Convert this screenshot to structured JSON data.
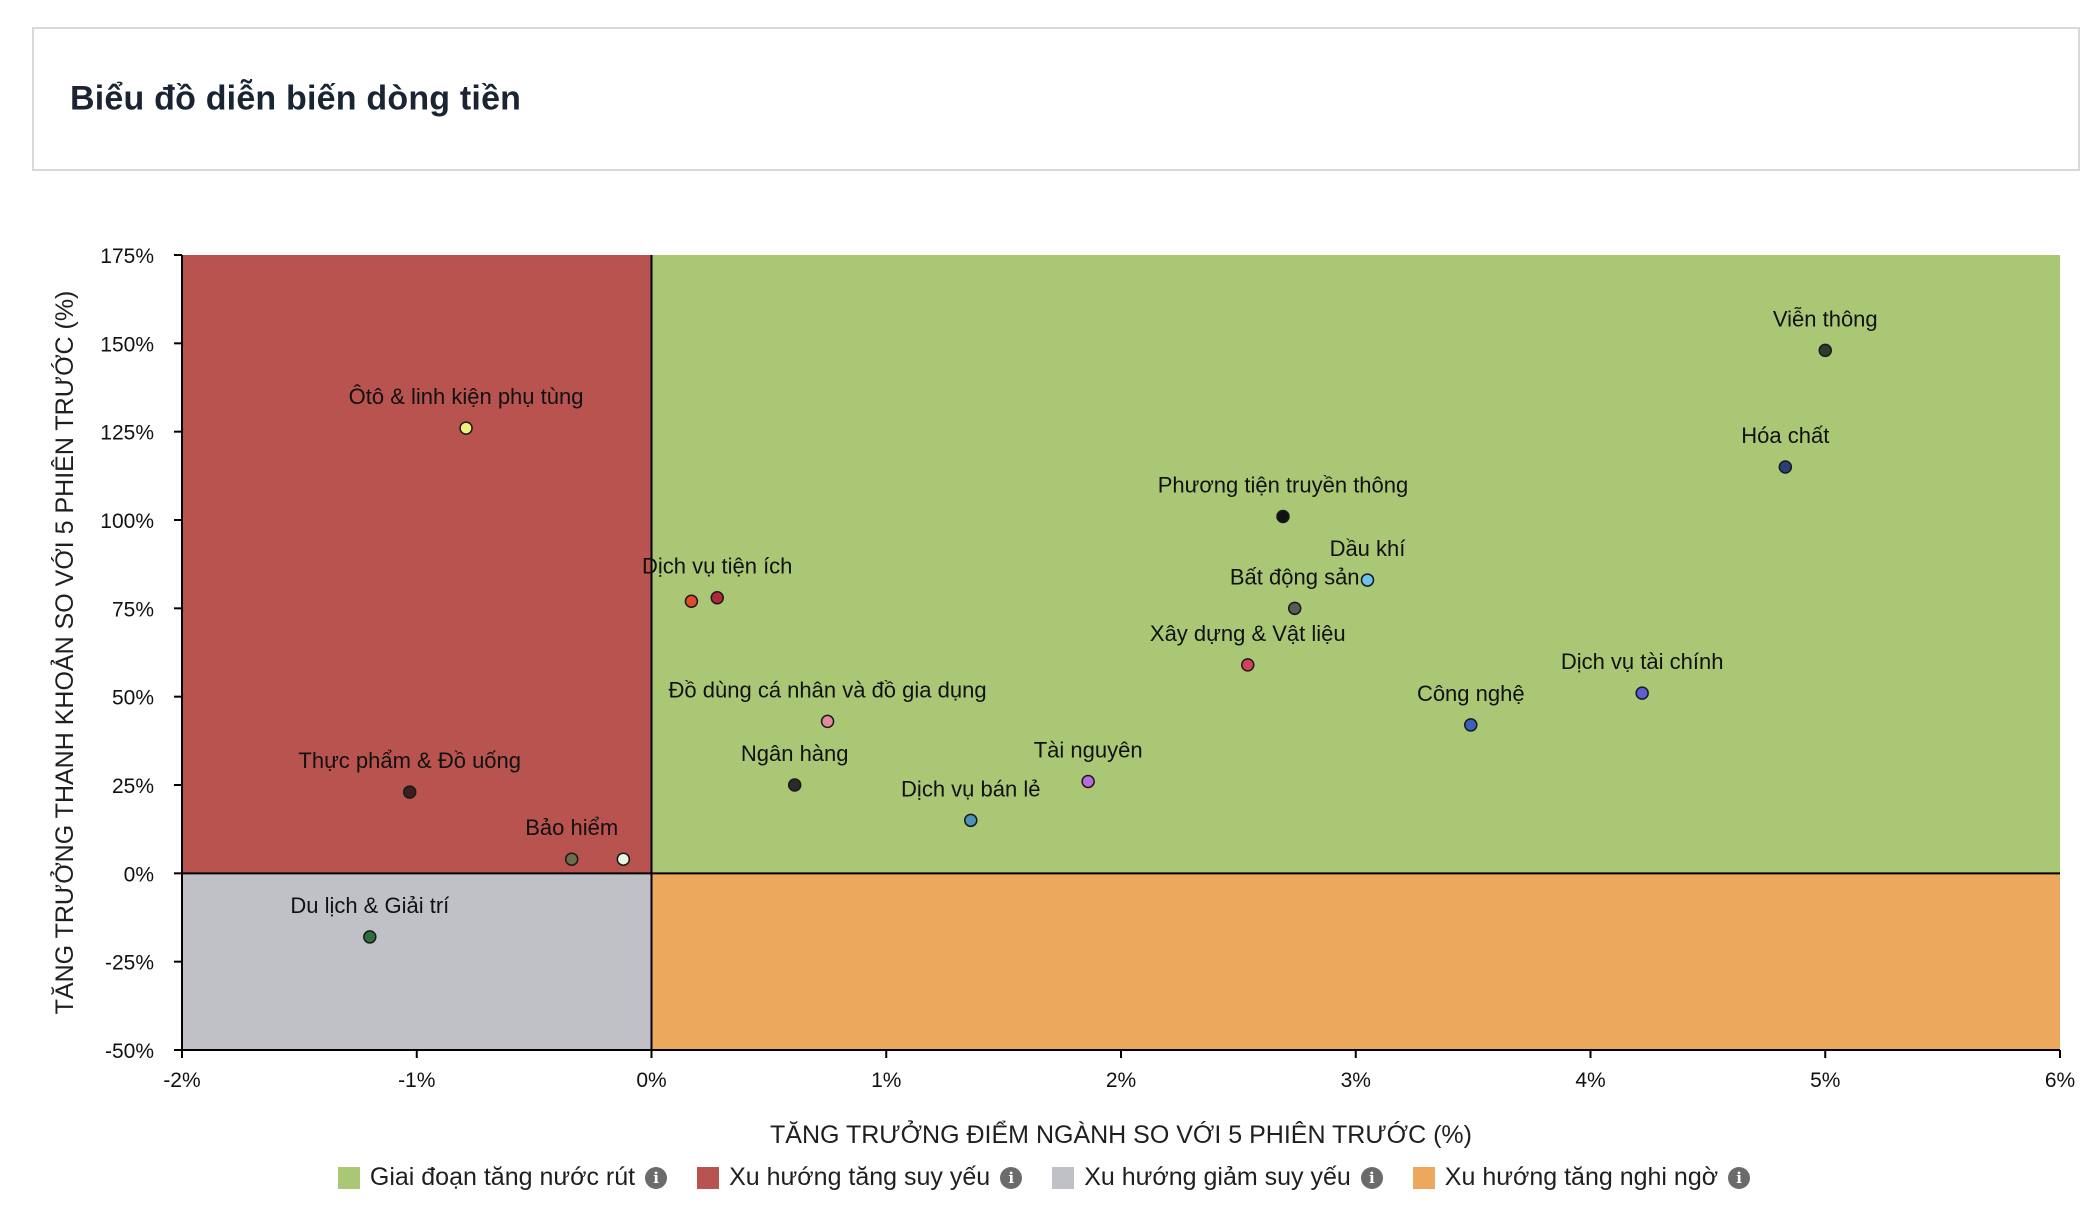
{
  "header": {
    "title": "Biểu đồ diễn biến dòng tiền"
  },
  "chart_data": {
    "type": "scatter",
    "title": "",
    "xlabel": "TĂNG TRƯỞNG ĐIỂM NGÀNH SO VỚI 5 PHIÊN TRƯỚC (%)",
    "ylabel": "TĂNG TRƯỞNG THANH KHOẢN SO VỚI 5 PHIÊN TRƯỚC (%)",
    "xlim": [
      -2,
      6
    ],
    "ylim": [
      -50,
      175
    ],
    "x_ticks": [
      -2,
      -1,
      0,
      1,
      2,
      3,
      4,
      5,
      6
    ],
    "y_ticks": [
      -50,
      -25,
      0,
      25,
      50,
      75,
      100,
      125,
      150,
      175
    ],
    "tick_suffix": "%",
    "quadrants": [
      {
        "name": "Giai đoạn tăng nước rút",
        "color": "#a9c774",
        "x_range": [
          0,
          6
        ],
        "y_range": [
          0,
          175
        ]
      },
      {
        "name": "Xu hướng tăng suy yếu",
        "color": "#b8534f",
        "x_range": [
          -2,
          0
        ],
        "y_range": [
          0,
          175
        ]
      },
      {
        "name": "Xu hướng giảm suy yếu",
        "color": "#c0c1c6",
        "x_range": [
          -2,
          0
        ],
        "y_range": [
          -50,
          0
        ]
      },
      {
        "name": "Xu hướng tăng nghi ngờ",
        "color": "#eca85c",
        "x_range": [
          0,
          6
        ],
        "y_range": [
          -50,
          0
        ]
      }
    ],
    "points": [
      {
        "label": "Viễn thông",
        "x": 5.0,
        "y": 148,
        "color": "#2e3b2e",
        "show_label": true
      },
      {
        "label": "Hóa chất",
        "x": 4.83,
        "y": 115,
        "color": "#2c3e78",
        "show_label": true
      },
      {
        "label": "Phương tiện truyền thông",
        "x": 2.69,
        "y": 101,
        "color": "#111111",
        "show_label": true
      },
      {
        "label": "Dầu khí",
        "x": 3.05,
        "y": 83,
        "color": "#6ec1ea",
        "show_label": true
      },
      {
        "label": "Bất động sản",
        "x": 2.74,
        "y": 75,
        "color": "#5a5a5a",
        "show_label": true
      },
      {
        "label": "Xây dựng & Vật liệu",
        "x": 2.54,
        "y": 59,
        "color": "#d3405a",
        "show_label": true
      },
      {
        "label": "Dịch vụ tài chính",
        "x": 4.22,
        "y": 51,
        "color": "#5b5fd6",
        "show_label": true
      },
      {
        "label": "Công nghệ",
        "x": 3.49,
        "y": 42,
        "color": "#3a62b8",
        "show_label": true
      },
      {
        "label": "Tài nguyên",
        "x": 1.86,
        "y": 26,
        "color": "#bd6ad9",
        "show_label": true
      },
      {
        "label": "Dịch vụ bán lẻ",
        "x": 1.36,
        "y": 15,
        "color": "#4a92b8",
        "show_label": true
      },
      {
        "label": "Ngân hàng",
        "x": 0.61,
        "y": 25,
        "color": "#2a2a2a",
        "show_label": true
      },
      {
        "label": "Đồ dùng cá nhân và đồ gia dụng",
        "x": 0.75,
        "y": 43,
        "color": "#e28a9a",
        "show_label": true
      },
      {
        "label": "Dịch vụ tiện ích",
        "x": 0.28,
        "y": 78,
        "color": "#b0283a",
        "show_label": true
      },
      {
        "label": "",
        "x": 0.17,
        "y": 77,
        "color": "#e24a2e",
        "show_label": false
      },
      {
        "label": "Ôtô & linh kiện phụ tùng",
        "x": -0.79,
        "y": 126,
        "color": "#f0f07a",
        "show_label": true
      },
      {
        "label": "Thực phẩm & Đồ uống",
        "x": -1.03,
        "y": 23,
        "color": "#3d1e1e",
        "show_label": true
      },
      {
        "label": "Bảo hiểm",
        "x": -0.34,
        "y": 4,
        "color": "#6e6e4e",
        "show_label": true
      },
      {
        "label": "",
        "x": -0.12,
        "y": 4,
        "color": "#e8f7e0",
        "show_label": false
      },
      {
        "label": "Du lịch & Giải trí",
        "x": -1.2,
        "y": -18,
        "color": "#2e6e3a",
        "show_label": true
      }
    ]
  },
  "legend": {
    "items": [
      {
        "label": "Giai đoạn tăng nước rút",
        "color": "#a9c774",
        "icon": "info-icon"
      },
      {
        "label": "Xu hướng tăng suy yếu",
        "color": "#b8534f",
        "icon": "info-icon"
      },
      {
        "label": "Xu hướng giảm suy yếu",
        "color": "#c0c1c6",
        "icon": "info-icon"
      },
      {
        "label": "Xu hướng tăng nghi ngờ",
        "color": "#eca85c",
        "icon": "info-icon"
      }
    ]
  }
}
